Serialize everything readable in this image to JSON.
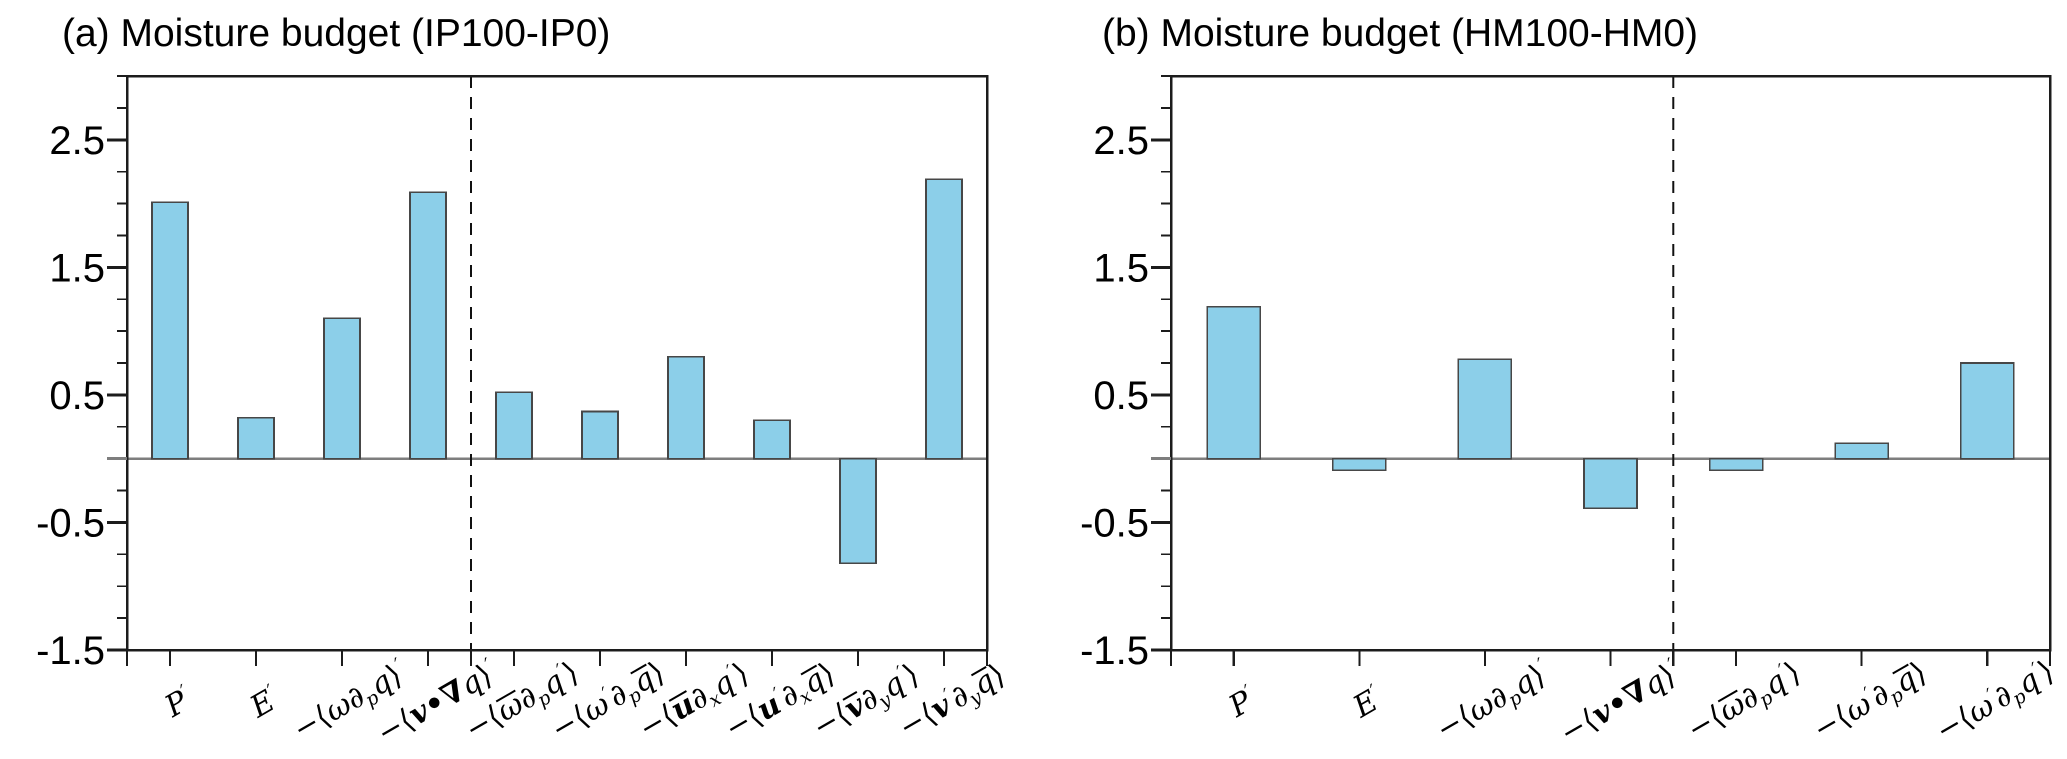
{
  "style": {
    "background": "#ffffff",
    "bar_fill": "#8CCFE9",
    "bar_stroke": "#474747",
    "axis_color": "#1c1c1c",
    "zero_line_color": "#7E7E7E",
    "separator_color": "#111111",
    "text_color": "#000000"
  },
  "chart_data": [
    {
      "type": "bar",
      "panel": "a",
      "title": "(a) Moisture budget (IP100-IP0)",
      "ylim": [
        -1.5,
        3.0
      ],
      "yticks": [
        2.5,
        1.5,
        0.5,
        -0.5,
        -1.5
      ],
      "ytick_labels": [
        "2.5",
        "1.5",
        "0.5",
        "-0.5",
        "-1.5"
      ],
      "minor_step": 0.25,
      "grid": false,
      "legend": null,
      "separator_after": 4,
      "categories": [
        "P′",
        "E′",
        "−⟨ω∂pq⟩′",
        "−⟨v•∇q⟩′",
        "−⟨ω̄∂pq′⟩",
        "−⟨ω′∂pq̄⟩",
        "−⟨ū∂xq′⟩",
        "−⟨u′∂xq̄⟩",
        "−⟨v̄∂yq′⟩",
        "−⟨v′∂yq̄⟩"
      ],
      "values": [
        2.01,
        0.32,
        1.1,
        2.09,
        0.52,
        0.37,
        0.8,
        0.3,
        -0.82,
        2.19
      ],
      "categories_rich": [
        [
          [
            "P",
            "i"
          ],
          [
            "′",
            "pr"
          ]
        ],
        [
          [
            "E",
            "i"
          ],
          [
            "′",
            "pr"
          ]
        ],
        [
          [
            "−⟨",
            "rm"
          ],
          [
            "ω",
            "i"
          ],
          [
            "∂",
            "i"
          ],
          [
            "p",
            "sb"
          ],
          [
            "q",
            "i"
          ],
          [
            "⟩",
            "rm"
          ],
          [
            "′",
            "pr"
          ]
        ],
        [
          [
            "−⟨",
            "rm"
          ],
          [
            "v",
            "bd"
          ],
          [
            "•",
            "rm bd"
          ],
          [
            "∇",
            "rm bd"
          ],
          [
            "q",
            "i"
          ],
          [
            "⟩",
            "rm"
          ],
          [
            "′",
            "pr"
          ]
        ],
        [
          [
            "−⟨",
            "rm"
          ],
          [
            "ω",
            "i ov"
          ],
          [
            "∂",
            "i"
          ],
          [
            "p",
            "sb"
          ],
          [
            "q",
            "i"
          ],
          [
            "′",
            "pr"
          ],
          [
            "⟩",
            "rm"
          ]
        ],
        [
          [
            "−⟨",
            "rm"
          ],
          [
            "ω",
            "i"
          ],
          [
            "′",
            "pr"
          ],
          [
            "∂",
            "i"
          ],
          [
            "p",
            "sb"
          ],
          [
            "q",
            "i ov"
          ],
          [
            "⟩",
            "rm"
          ]
        ],
        [
          [
            "−⟨",
            "rm"
          ],
          [
            "u",
            "bd ov"
          ],
          [
            "∂",
            "i"
          ],
          [
            "x",
            "sb"
          ],
          [
            "q",
            "i"
          ],
          [
            "′",
            "pr"
          ],
          [
            "⟩",
            "rm"
          ]
        ],
        [
          [
            "−⟨",
            "rm"
          ],
          [
            "u",
            "bd"
          ],
          [
            "′",
            "pr"
          ],
          [
            "∂",
            "i"
          ],
          [
            "x",
            "sb"
          ],
          [
            "q",
            "i ov"
          ],
          [
            "⟩",
            "rm"
          ]
        ],
        [
          [
            "−⟨",
            "rm"
          ],
          [
            "v",
            "bd ov"
          ],
          [
            "∂",
            "i"
          ],
          [
            "y",
            "sb"
          ],
          [
            "q",
            "i"
          ],
          [
            "′",
            "pr"
          ],
          [
            "⟩",
            "rm"
          ]
        ],
        [
          [
            "−⟨",
            "rm"
          ],
          [
            "v",
            "bd"
          ],
          [
            "′",
            "pr"
          ],
          [
            "∂",
            "i"
          ],
          [
            "y",
            "sb"
          ],
          [
            "q",
            "i ov"
          ],
          [
            "⟩",
            "rm"
          ]
        ]
      ]
    },
    {
      "type": "bar",
      "panel": "b",
      "title": "(b) Moisture budget (HM100-HM0)",
      "ylim": [
        -1.5,
        3.0
      ],
      "yticks": [
        2.5,
        1.5,
        0.5,
        -0.5,
        -1.5
      ],
      "ytick_labels": [
        "2.5",
        "1.5",
        "0.5",
        "-0.5",
        "-1.5"
      ],
      "minor_step": 0.25,
      "grid": false,
      "legend": null,
      "separator_after": 4,
      "categories": [
        "P′",
        "E′",
        "−⟨ω∂pq⟩′",
        "−⟨v•∇q⟩′",
        "−⟨ω̄∂pq′⟩",
        "−⟨ω′∂pq̄⟩",
        "−⟨ω′∂pq′⟩"
      ],
      "values": [
        1.19,
        -0.09,
        0.78,
        -0.39,
        -0.09,
        0.12,
        0.75
      ],
      "categories_rich": [
        [
          [
            "P",
            "i"
          ],
          [
            "′",
            "pr"
          ]
        ],
        [
          [
            "E",
            "i"
          ],
          [
            "′",
            "pr"
          ]
        ],
        [
          [
            "−⟨",
            "rm"
          ],
          [
            "ω",
            "i"
          ],
          [
            "∂",
            "i"
          ],
          [
            "p",
            "sb"
          ],
          [
            "q",
            "i"
          ],
          [
            "⟩",
            "rm"
          ],
          [
            "′",
            "pr"
          ]
        ],
        [
          [
            "−⟨",
            "rm"
          ],
          [
            "v",
            "bd"
          ],
          [
            "•",
            "rm bd"
          ],
          [
            "∇",
            "rm bd"
          ],
          [
            "q",
            "i"
          ],
          [
            "⟩",
            "rm"
          ],
          [
            "′",
            "pr"
          ]
        ],
        [
          [
            "−⟨",
            "rm"
          ],
          [
            "ω",
            "i ov"
          ],
          [
            "∂",
            "i"
          ],
          [
            "p",
            "sb"
          ],
          [
            "q",
            "i"
          ],
          [
            "′",
            "pr"
          ],
          [
            "⟩",
            "rm"
          ]
        ],
        [
          [
            "−⟨",
            "rm"
          ],
          [
            "ω",
            "i"
          ],
          [
            "′",
            "pr"
          ],
          [
            "∂",
            "i"
          ],
          [
            "p",
            "sb"
          ],
          [
            "q",
            "i ov"
          ],
          [
            "⟩",
            "rm"
          ]
        ],
        [
          [
            "−⟨",
            "rm"
          ],
          [
            "ω",
            "i"
          ],
          [
            "′",
            "pr"
          ],
          [
            "∂",
            "i"
          ],
          [
            "p",
            "sb"
          ],
          [
            "q",
            "i"
          ],
          [
            "′",
            "pr"
          ],
          [
            "⟩",
            "rm"
          ]
        ]
      ]
    }
  ]
}
